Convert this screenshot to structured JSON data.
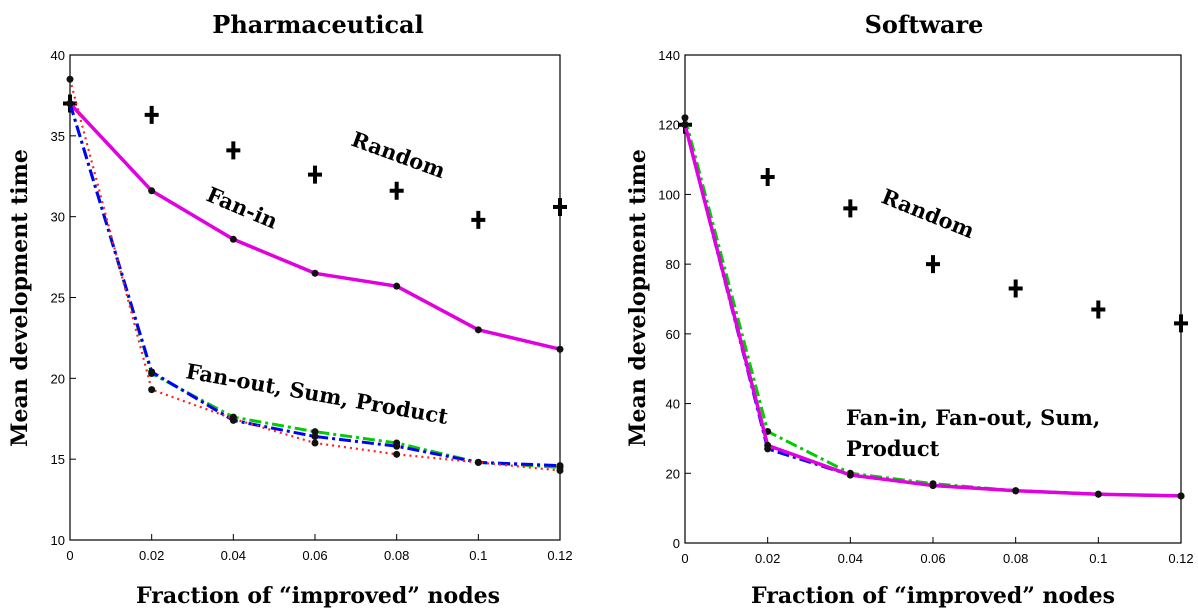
{
  "chart_data": [
    {
      "type": "line",
      "title": "Pharmaceutical",
      "xlabel": "Fraction of “improved” nodes",
      "ylabel": "Mean development time",
      "xlim": [
        0,
        0.12
      ],
      "ylim": [
        10,
        40
      ],
      "xticks": [
        "0",
        "0.02",
        "0.04",
        "0.06",
        "0.08",
        "0.1",
        "0.12"
      ],
      "yticks": [
        "10",
        "15",
        "20",
        "25",
        "30",
        "35",
        "40"
      ],
      "x": [
        0,
        0.02,
        0.04,
        0.06,
        0.08,
        0.1,
        0.12
      ],
      "series": [
        {
          "color": "#000000",
          "style": "markers",
          "values": [
            37.0,
            36.3,
            34.1,
            32.6,
            31.6,
            29.8,
            30.6
          ]
        },
        {
          "color": "#e000e0",
          "style": "solid",
          "values": [
            37.0,
            31.6,
            28.6,
            26.5,
            25.7,
            23.0,
            21.8
          ]
        },
        {
          "color": "#00cc00",
          "style": "dashdot",
          "values": [
            37.0,
            20.3,
            17.6,
            16.7,
            16.0,
            14.8,
            14.5
          ]
        },
        {
          "color": "#0000ff",
          "style": "dashdot",
          "values": [
            37.0,
            20.4,
            17.4,
            16.4,
            15.8,
            14.8,
            14.6
          ]
        },
        {
          "color": "#ff2020",
          "style": "dotted",
          "values": [
            38.5,
            19.3,
            17.5,
            16.0,
            15.3,
            14.8,
            14.3
          ]
        }
      ],
      "annotations": [
        "Random",
        "Fan-in",
        "Fan-out, Sum, Product"
      ]
    },
    {
      "type": "line",
      "title": "Software",
      "xlabel": "Fraction of “improved” nodes",
      "ylabel": "Mean development time",
      "xlim": [
        0,
        0.12
      ],
      "ylim": [
        0,
        140
      ],
      "xticks": [
        "0",
        "0.02",
        "0.04",
        "0.06",
        "0.08",
        "0.1",
        "0.12"
      ],
      "yticks": [
        "0",
        "20",
        "40",
        "60",
        "80",
        "100",
        "120",
        "140"
      ],
      "x": [
        0,
        0.02,
        0.04,
        0.06,
        0.08,
        0.1,
        0.12
      ],
      "series": [
        {
          "color": "#000000",
          "style": "markers",
          "values": [
            120,
            105,
            96,
            80,
            73,
            67,
            63
          ]
        },
        {
          "color": "#00cc00",
          "style": "dashdot",
          "values": [
            122,
            32,
            20,
            17,
            15,
            14,
            13.5
          ]
        },
        {
          "color": "#0000ff",
          "style": "dashdot",
          "values": [
            120,
            27,
            19.5,
            16.5,
            15,
            14,
            13.5
          ]
        },
        {
          "color": "#e000e0",
          "style": "solid",
          "values": [
            120,
            28,
            19.5,
            16.5,
            15,
            14,
            13.5
          ]
        }
      ],
      "annotations": [
        "Random",
        "Fan-in, Fan-out, Sum,",
        "Product"
      ]
    }
  ]
}
